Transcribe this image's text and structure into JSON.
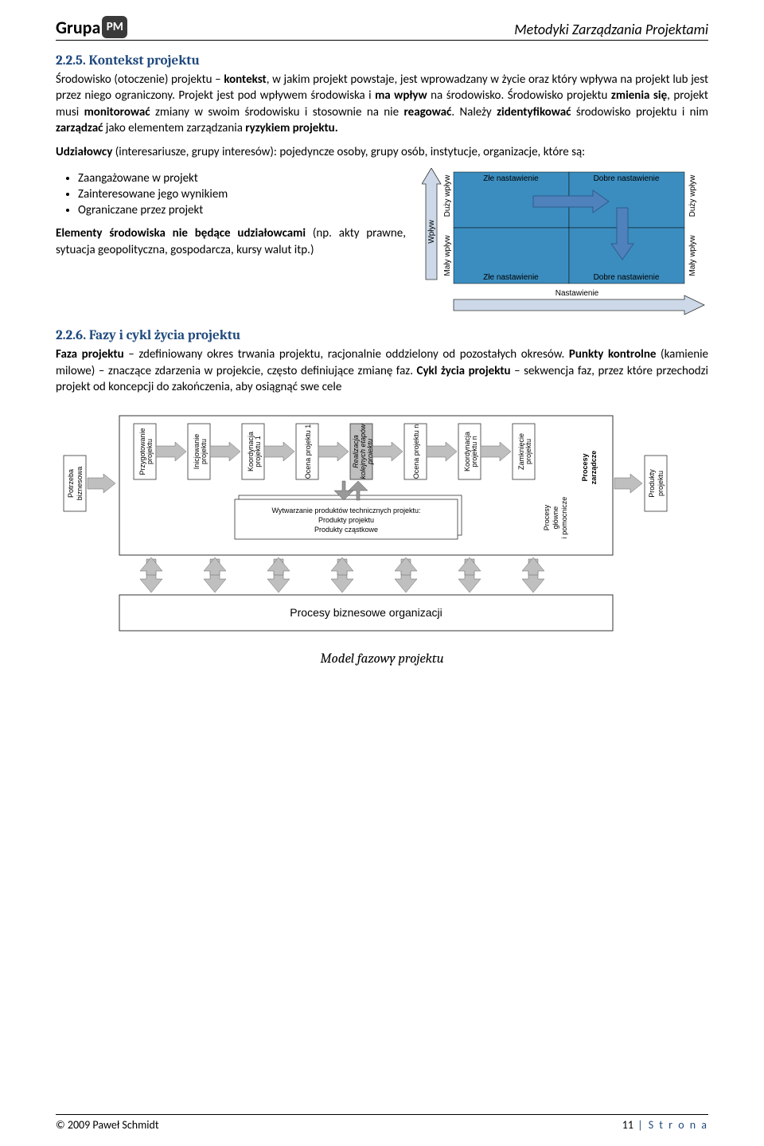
{
  "header": {
    "logo_text": "Grupa",
    "logo_badge": "PM",
    "title": "Metodyki Zarządzania Projektami"
  },
  "sec1": {
    "heading": "2.2.5. Kontekst projektu",
    "p1_a": "Środowisko (otoczenie) projektu – ",
    "p1_b": "kontekst",
    "p1_c": ", w jakim projekt powstaje, jest wprowadzany w życie oraz który wpływa na projekt lub jest przez niego ograniczony. Projekt jest pod wpływem środowiska i ",
    "p1_d": "ma wpływ",
    "p1_e": " na środowisko. Środowisko projektu ",
    "p1_f": "zmienia się",
    "p1_g": ", projekt musi ",
    "p1_h": "monitorować",
    "p1_i": " zmiany w swoim środowisku i stosownie na nie ",
    "p1_j": "reagować",
    "p1_k": ". Należy ",
    "p1_l": "zidentyfikować",
    "p1_m": " środowisko projektu i nim ",
    "p1_n": "zarządzać",
    "p1_o": " jako elementem zarządzania ",
    "p1_p": "ryzykiem projektu.",
    "p2_a": "Udziałowcy",
    "p2_b": " (interesariusze, grupy interesów): pojedyncze osoby, grupy osób, instytucje, organizacje, które są:",
    "bullets": [
      "Zaangażowane w projekt",
      "Zainteresowane jego wynikiem",
      "Ograniczane przez projekt"
    ],
    "p3_a": "Elementy środowiska nie będące udziałowcami",
    "p3_b": " (np. akty prawne, sytuacja geopolityczna, gospodarcza, kursy walut itp.)"
  },
  "matrix": {
    "cell_bg": "#3b8dbf",
    "arrow_bg": "#5fa3c9",
    "q1": "Złe nastawienie",
    "q2": "Dobre nastawienie",
    "q3": "Złe nastawienie",
    "q4": "Dobre nastawienie",
    "yaxis": "Wpływ",
    "y_top": "Duży wpływ",
    "y_bot": "Mały wpływ",
    "y_top_r": "Duży wpływ",
    "y_bot_r": "Mały wpływ",
    "xaxis": "Nastawienie"
  },
  "sec2": {
    "heading": "2.2.6. Fazy i cykl życia projektu",
    "p_a": "Faza projektu",
    "p_b": " – zdefiniowany okres trwania projektu, racjonalnie oddzielony od pozostałych okresów. ",
    "p_c": "Punkty kontrolne",
    "p_d": " (kamienie milowe) – znaczące zdarzenia w projekcie, często definiujące zmianę faz. ",
    "p_e": "Cykl życia projektu",
    "p_f": " – sekwencja faz, przez które przechodzi projekt od koncepcji do zakończenia, aby osiągnąć swe cele"
  },
  "lifecycle": {
    "start": "Potrzeba\nbiznesowa",
    "boxes": [
      {
        "l1": "Przygotowanie",
        "l2": "projektu",
        "it": false
      },
      {
        "l1": "Inicjowanie",
        "l2": "projektu",
        "it": false
      },
      {
        "l1": "Koordynacja",
        "l2": "projektu 1",
        "it": false
      },
      {
        "l1": "Ocena projektu 1",
        "l2": "",
        "it": false
      },
      {
        "l1": "Realizacja",
        "l2": "kolejnych etapów",
        "l3": "projektu",
        "it": true
      },
      {
        "l1": "Ocena projektu n",
        "l2": "",
        "it": false
      },
      {
        "l1": "Koordynacja",
        "l2": "projektu n",
        "it": false
      },
      {
        "l1": "Zamknięcie",
        "l2": "projektu",
        "it": false
      }
    ],
    "mgmt": "Procesy\nzarządcze",
    "inner1": "Wytwarzanie produktów technicznych projektu:",
    "inner2": "Produkty projektu",
    "inner3": "Produkty cząstkowe",
    "core": "Procesy\ngłówne\ni pomocnicze",
    "out": "Produkty\nprojektu",
    "bottom": "Procesy biznesowe organizacji",
    "caption": "Model fazowy projektu"
  },
  "footer": {
    "left": "© 2009 Paweł Schmidt",
    "right_n": "11",
    "right_t": " | S t r o n a"
  }
}
